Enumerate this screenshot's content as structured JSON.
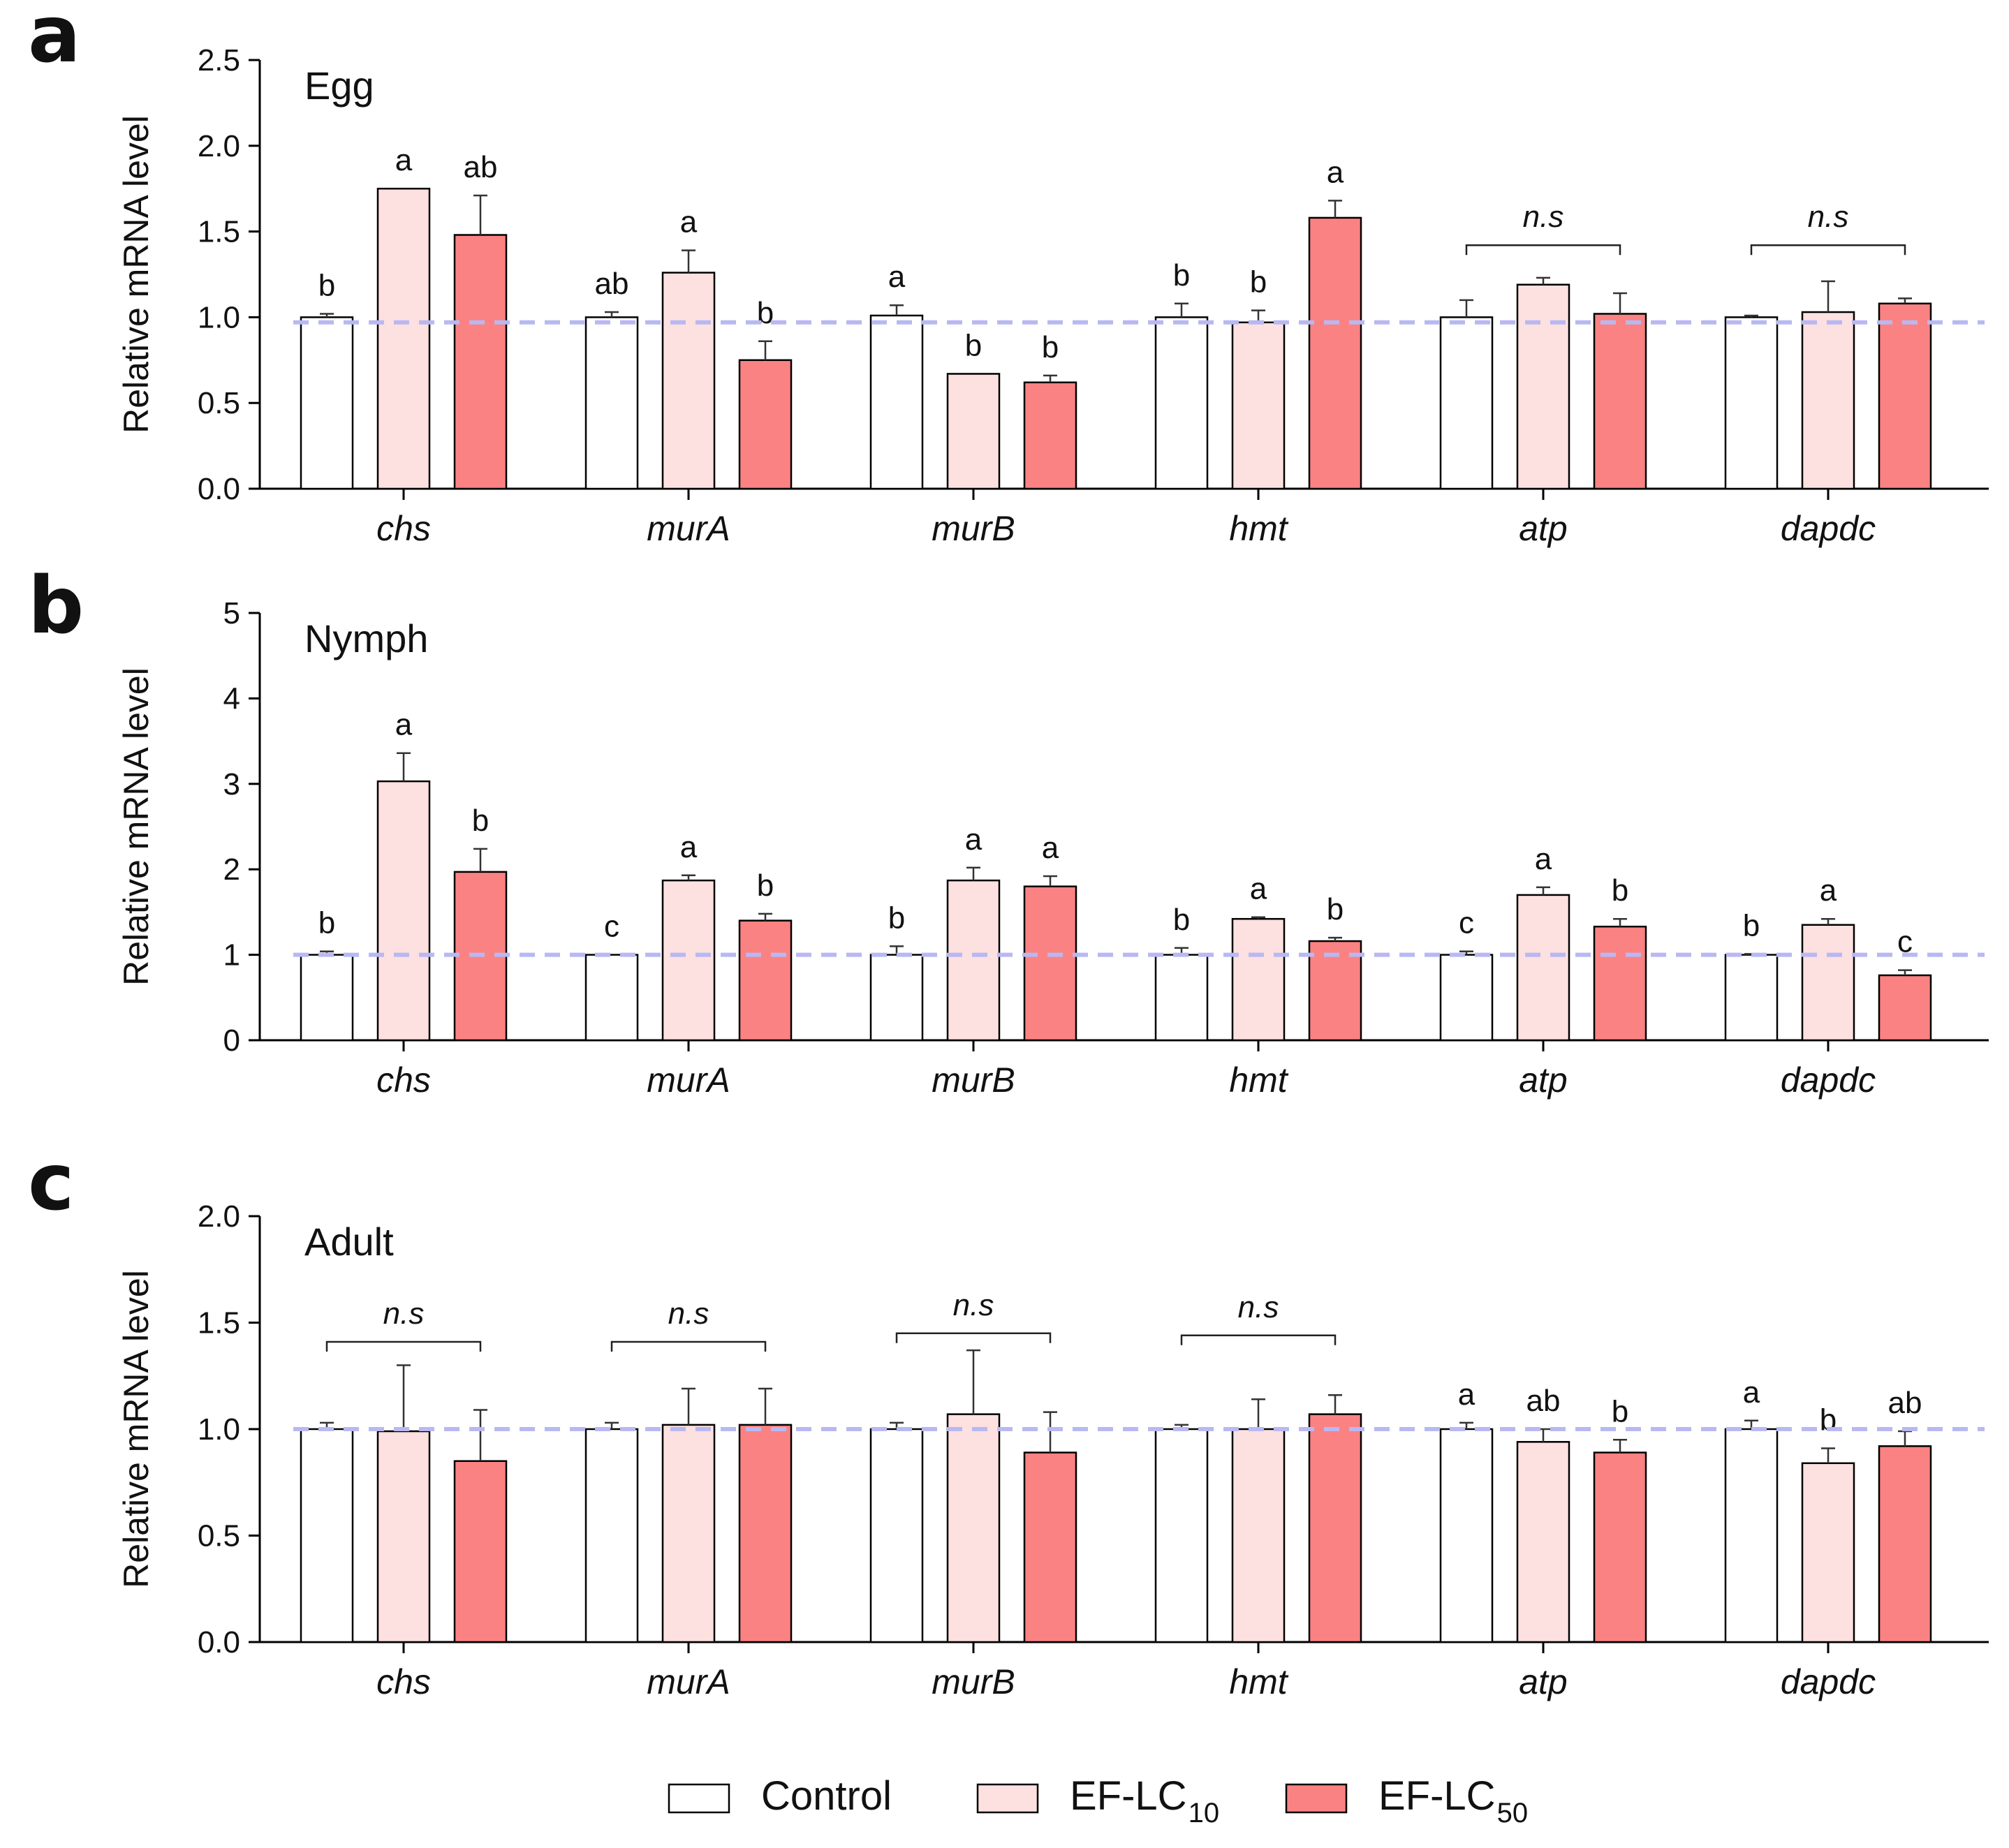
{
  "colors": {
    "control": "#ffffff",
    "lc10": "#fde0e0",
    "lc50": "#fb8282",
    "reference_line": "#b8b8f2",
    "axis": "#000000"
  },
  "legend": {
    "control_label": "Control",
    "lc10_label": "EF-LC",
    "lc10_sub": "10",
    "lc50_label": "EF-LC",
    "lc50_sub": "50"
  },
  "chart_data": [
    {
      "panel": "a",
      "type": "bar",
      "title": "Egg",
      "xlabel": "",
      "ylabel": "Relative mRNA level",
      "ylim": [
        0,
        2.5
      ],
      "yticks": [
        "0.0",
        "0.5",
        "1.0",
        "1.5",
        "2.0",
        "2.5"
      ],
      "reference_line": 0.97,
      "categories": [
        "chs",
        "murA",
        "murB",
        "hmt",
        "atp",
        "dapdc"
      ],
      "series": [
        {
          "name": "Control",
          "values": [
            1.0,
            1.0,
            1.01,
            1.0,
            1.0,
            1.0
          ],
          "errors": [
            0.02,
            0.03,
            0.06,
            0.08,
            0.1,
            0.01
          ]
        },
        {
          "name": "EF-LC10",
          "values": [
            1.75,
            1.26,
            0.67,
            0.97,
            1.19,
            1.03
          ],
          "errors": [
            0.0,
            0.13,
            0.0,
            0.07,
            0.04,
            0.18
          ]
        },
        {
          "name": "EF-LC50",
          "values": [
            1.48,
            0.75,
            0.62,
            1.58,
            1.02,
            1.08
          ],
          "errors": [
            0.23,
            0.11,
            0.04,
            0.1,
            0.12,
            0.03
          ]
        }
      ],
      "sig_labels": [
        [
          "b",
          "a",
          "ab"
        ],
        [
          "ab",
          "a",
          "b"
        ],
        [
          "a",
          "b",
          "b"
        ],
        [
          "b",
          "b",
          "a"
        ],
        [
          "",
          "",
          ""
        ],
        [
          "",
          "",
          ""
        ]
      ],
      "ns_brackets": [
        {
          "category": "atp",
          "label": "n.s",
          "y": 1.42
        },
        {
          "category": "dapdc",
          "label": "n.s",
          "y": 1.42
        }
      ]
    },
    {
      "panel": "b",
      "type": "bar",
      "title": "Nymph",
      "xlabel": "",
      "ylabel": "Relative mRNA level",
      "ylim": [
        0,
        5
      ],
      "yticks": [
        "0",
        "1",
        "2",
        "3",
        "4",
        "5"
      ],
      "reference_line": 1.0,
      "categories": [
        "chs",
        "murA",
        "murB",
        "hmt",
        "atp",
        "dapdc"
      ],
      "series": [
        {
          "name": "Control",
          "values": [
            1.0,
            1.0,
            1.0,
            1.0,
            1.0,
            1.0
          ],
          "errors": [
            0.04,
            0.0,
            0.1,
            0.08,
            0.04,
            0.01
          ]
        },
        {
          "name": "EF-LC10",
          "values": [
            3.03,
            1.87,
            1.87,
            1.42,
            1.7,
            1.35
          ],
          "errors": [
            0.33,
            0.06,
            0.15,
            0.02,
            0.09,
            0.07
          ]
        },
        {
          "name": "EF-LC50",
          "values": [
            1.97,
            1.4,
            1.8,
            1.16,
            1.33,
            0.76
          ],
          "errors": [
            0.27,
            0.08,
            0.12,
            0.04,
            0.09,
            0.06
          ]
        }
      ],
      "sig_labels": [
        [
          "b",
          "a",
          "b"
        ],
        [
          "c",
          "a",
          "b"
        ],
        [
          "b",
          "a",
          "a"
        ],
        [
          "b",
          "a",
          "b"
        ],
        [
          "c",
          "a",
          "b"
        ],
        [
          "b",
          "a",
          "c"
        ]
      ],
      "ns_brackets": []
    },
    {
      "panel": "c",
      "type": "bar",
      "title": "Adult",
      "xlabel": "",
      "ylabel": "Relative mRNA level",
      "ylim": [
        0,
        2.0
      ],
      "yticks": [
        "0.0",
        "0.5",
        "1.0",
        "1.5",
        "2.0"
      ],
      "reference_line": 1.0,
      "categories": [
        "chs",
        "murA",
        "murB",
        "hmt",
        "atp",
        "dapdc"
      ],
      "series": [
        {
          "name": "Control",
          "values": [
            1.0,
            1.0,
            1.0,
            1.0,
            1.0,
            1.0
          ],
          "errors": [
            0.03,
            0.03,
            0.03,
            0.02,
            0.03,
            0.04
          ]
        },
        {
          "name": "EF-LC10",
          "values": [
            0.99,
            1.02,
            1.07,
            1.0,
            0.94,
            0.84
          ],
          "errors": [
            0.31,
            0.17,
            0.3,
            0.14,
            0.06,
            0.07
          ]
        },
        {
          "name": "EF-LC50",
          "values": [
            0.85,
            1.02,
            0.89,
            1.07,
            0.89,
            0.92
          ],
          "errors": [
            0.24,
            0.17,
            0.19,
            0.09,
            0.06,
            0.07
          ]
        }
      ],
      "sig_labels": [
        [
          "",
          "",
          ""
        ],
        [
          "",
          "",
          ""
        ],
        [
          "",
          "",
          ""
        ],
        [
          "",
          "",
          ""
        ],
        [
          "a",
          "ab",
          "b"
        ],
        [
          "a",
          "b",
          "ab"
        ]
      ],
      "ns_brackets": [
        {
          "category": "chs",
          "label": "n.s",
          "y": 1.41
        },
        {
          "category": "murA",
          "label": "n.s",
          "y": 1.41
        },
        {
          "category": "murB",
          "label": "n.s",
          "y": 1.45
        },
        {
          "category": "hmt",
          "label": "n.s",
          "y": 1.44
        }
      ]
    }
  ]
}
